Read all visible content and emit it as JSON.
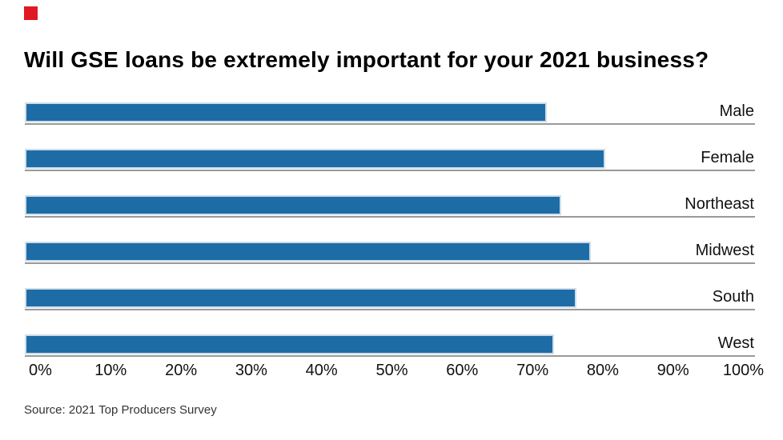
{
  "brand": {
    "mark_icon": "red-square-brand-mark",
    "mark_color": "#e01a22"
  },
  "header": {
    "title": "Will GSE loans be extremely important for your 2021 business?"
  },
  "chart_data": {
    "type": "bar",
    "orientation": "horizontal",
    "title": "Will GSE loans be extremely important for your 2021 business?",
    "categories": [
      "Male",
      "Female",
      "Northeast",
      "Midwest",
      "South",
      "West"
    ],
    "values": [
      72,
      80,
      74,
      78,
      76,
      73
    ],
    "unit": "percent",
    "xlabel": "",
    "ylabel": "",
    "xlim": [
      0,
      100
    ],
    "x_ticks": [
      "0%",
      "10%",
      "20%",
      "30%",
      "40%",
      "50%",
      "60%",
      "70%",
      "80%",
      "90%",
      "100%"
    ],
    "grid": false,
    "legend_position": "none",
    "value_labels_shown": false,
    "bar_color": "#1e6ca6",
    "bar_border_color": "#cfdeea",
    "row_line_color": "#999999",
    "category_label_position": "right"
  },
  "footer": {
    "source": "Source: 2021 Top Producers Survey"
  }
}
